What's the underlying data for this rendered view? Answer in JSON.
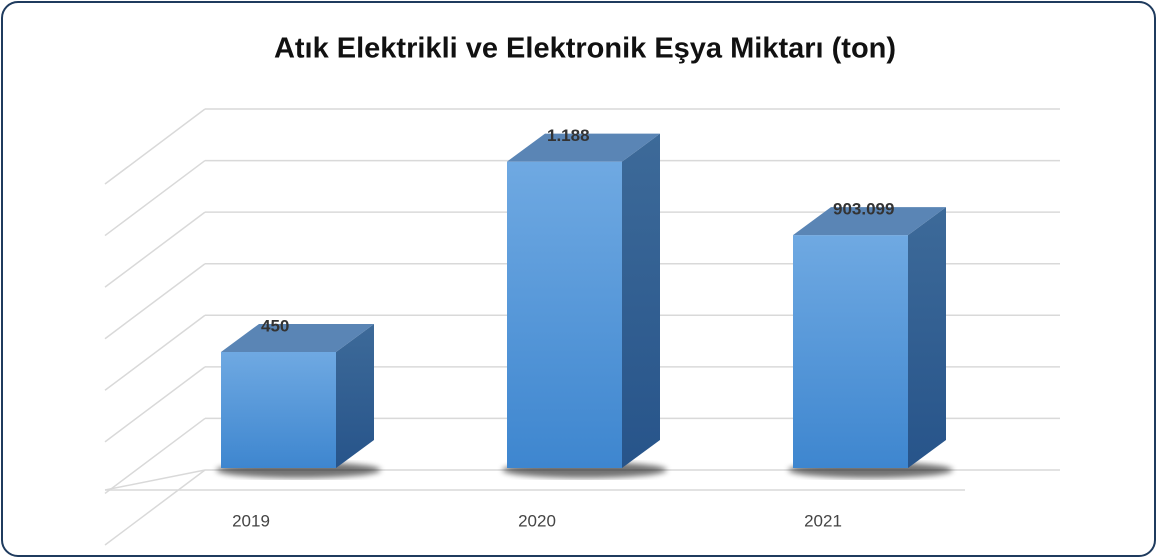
{
  "chart_data": {
    "type": "bar3d",
    "title": "Atık Elektrikli ve Elektronik Eşya Miktarı (ton)",
    "categories": [
      "2019",
      "2020",
      "2021"
    ],
    "values": [
      450,
      1188,
      903.099
    ],
    "value_labels": [
      "450",
      "1.188",
      "903.099"
    ],
    "color": "#4a90d9",
    "ylim": [
      0,
      1400
    ],
    "yticks": [
      0,
      200,
      400,
      600,
      800,
      1000,
      1200,
      1400
    ],
    "grid": true
  }
}
